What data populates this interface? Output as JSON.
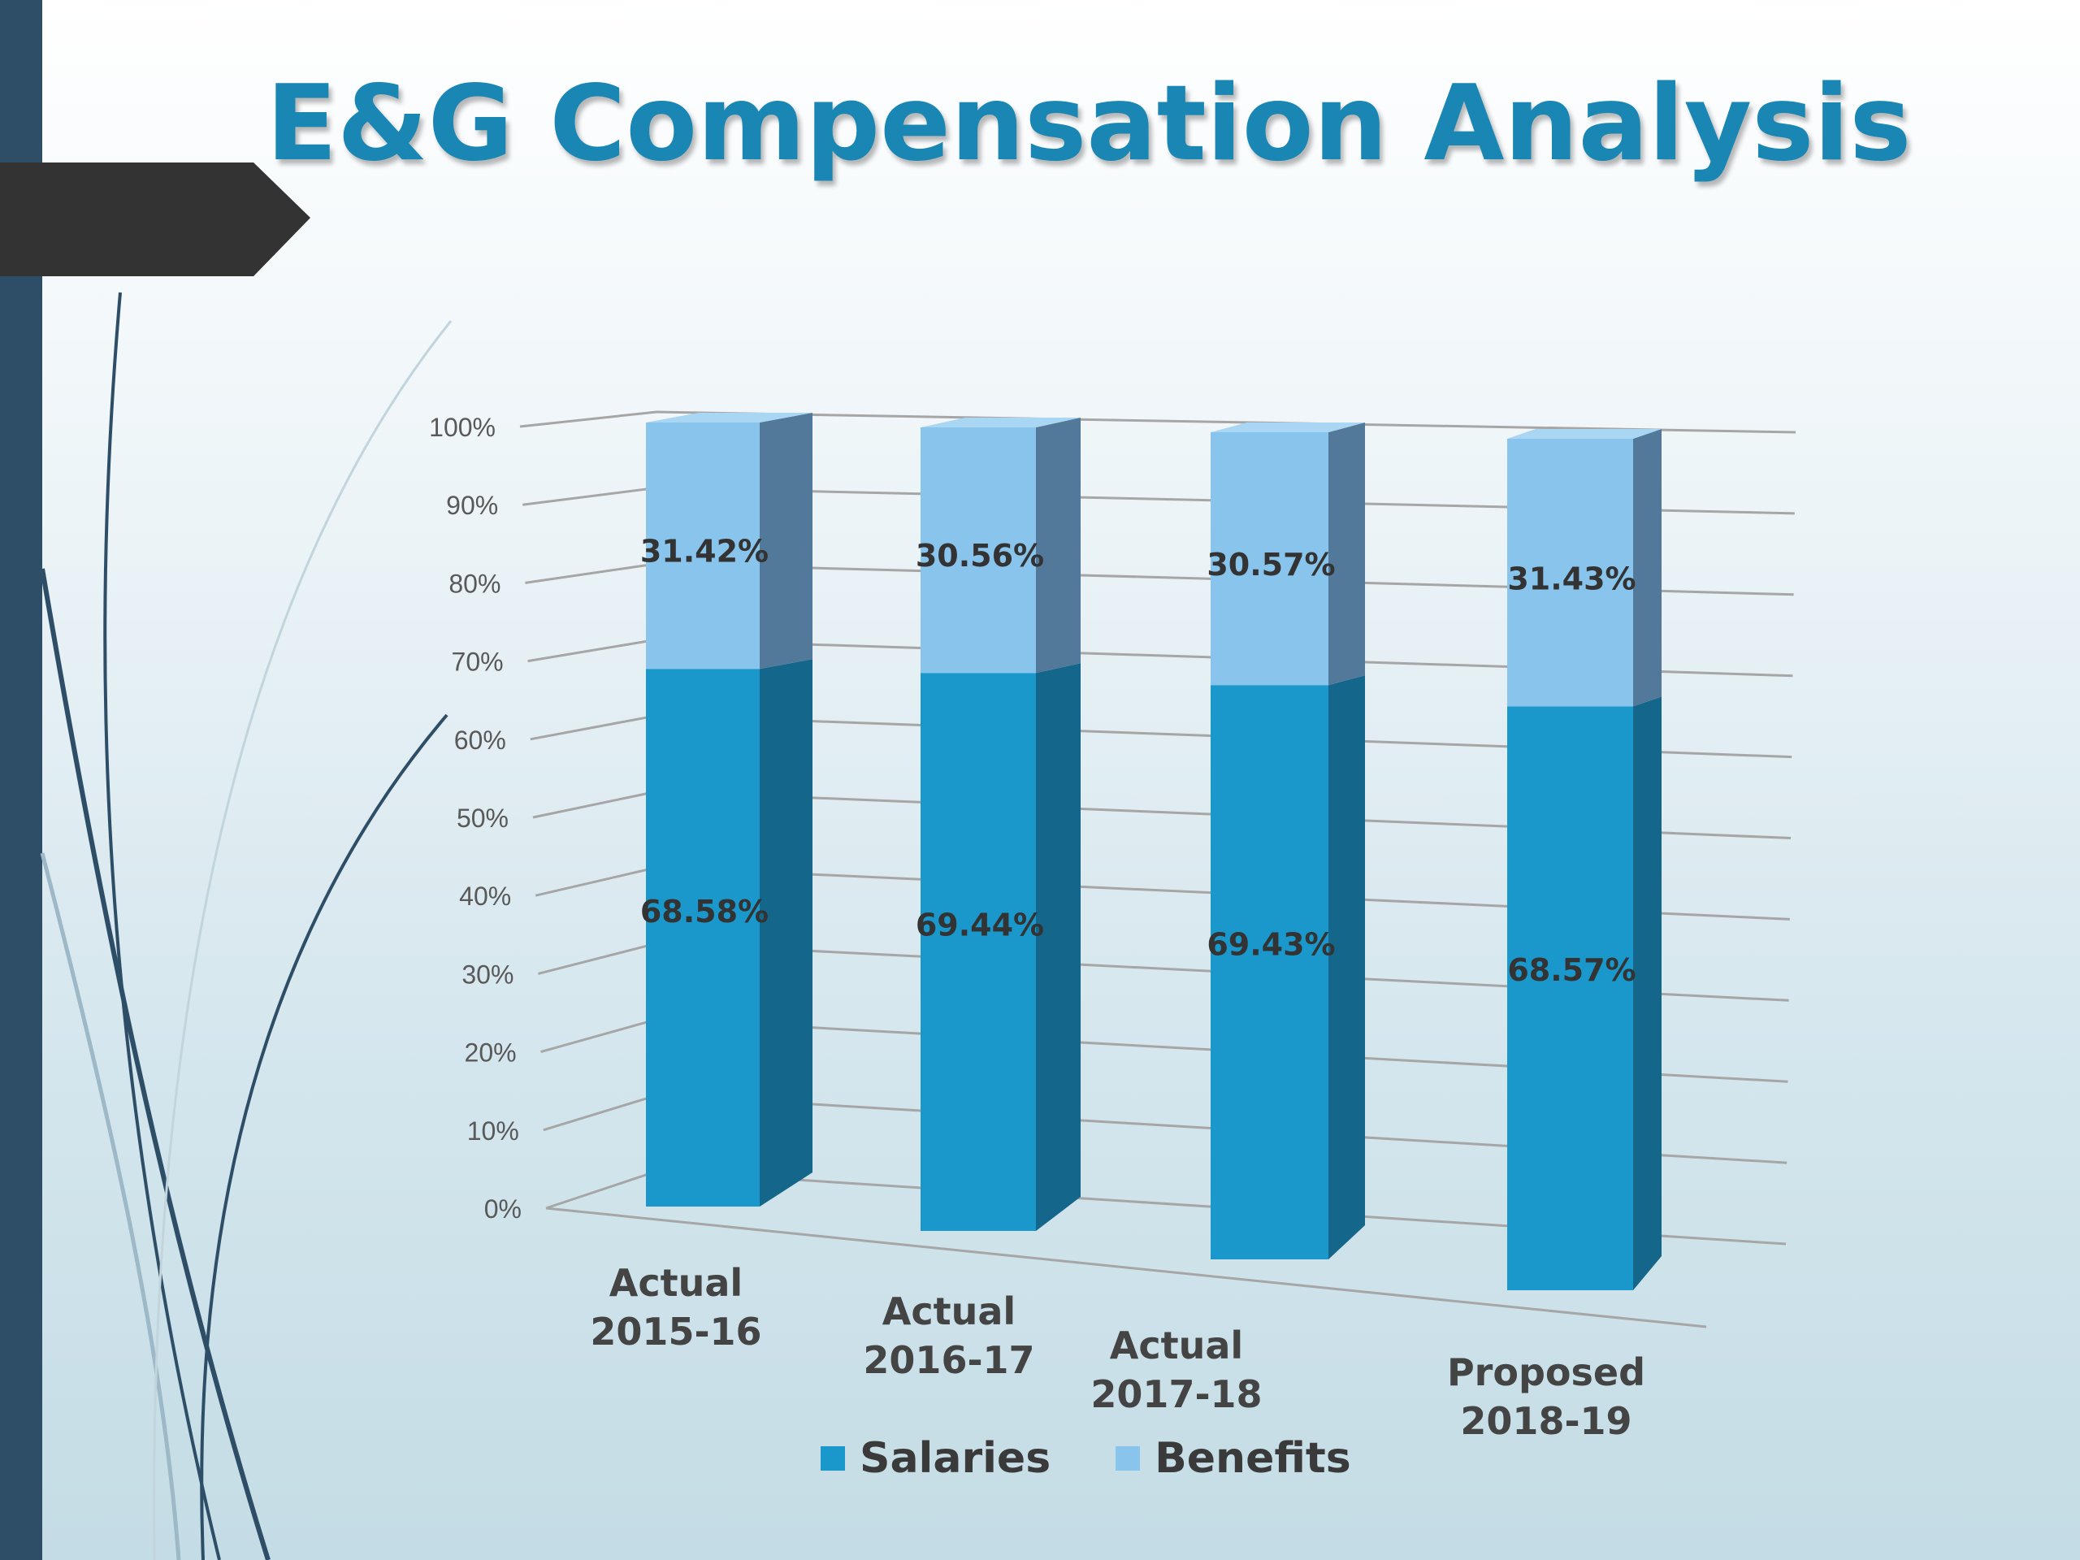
{
  "slide": {
    "title": "E&G Compensation Analysis"
  },
  "colors": {
    "title": "#1a86b3",
    "salaries": "#1a98cc",
    "salaries_side": "#14668a",
    "benefits": "#89c4ec",
    "benefits_side": "#53799a",
    "sidebar": "#2d4e66"
  },
  "chart_data": {
    "type": "bar",
    "stacked": true,
    "percent_stacked": true,
    "three_d": true,
    "categories": [
      "Actual 2015-16",
      "Actual 2016-17",
      "Actual 2017-18",
      "Proposed 2018-19"
    ],
    "category_lines": [
      [
        "Actual",
        "2015-16"
      ],
      [
        "Actual",
        "2016-17"
      ],
      [
        "Actual",
        "2017-18"
      ],
      [
        "Proposed",
        "2018-19"
      ]
    ],
    "series": [
      {
        "name": "Salaries",
        "values": [
          68.58,
          69.44,
          69.43,
          68.57
        ],
        "labels": [
          "68.58%",
          "69.44%",
          "69.43%",
          "68.57%"
        ]
      },
      {
        "name": "Benefits",
        "values": [
          31.42,
          30.56,
          30.57,
          31.43
        ],
        "labels": [
          "31.42%",
          "30.56%",
          "30.57%",
          "31.43%"
        ]
      }
    ],
    "y_ticks": [
      "0%",
      "10%",
      "20%",
      "30%",
      "40%",
      "50%",
      "60%",
      "70%",
      "80%",
      "90%",
      "100%"
    ],
    "ylim": [
      0,
      100
    ],
    "grid": true,
    "legend": "bottom"
  }
}
